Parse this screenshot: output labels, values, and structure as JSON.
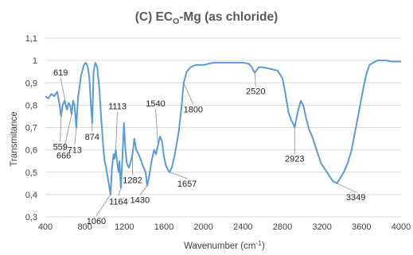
{
  "chart_data": {
    "type": "line",
    "title_main": "(C) EC",
    "title_sub": "O",
    "title_rest": "-Mg (as chloride)",
    "xlabel_main": "Wavenumber (cm",
    "xlabel_sup": "-1",
    "xlabel_end": ")",
    "ylabel": "Transmitance",
    "xlim": [
      400,
      4000
    ],
    "ylim": [
      0.3,
      1.1
    ],
    "xticks": [
      "400",
      "800",
      "1200",
      "1600",
      "2000",
      "2400",
      "2800",
      "3200",
      "3600",
      "4000"
    ],
    "yticks": [
      "0,3",
      "0,4",
      "0,5",
      "0,6",
      "0,7",
      "0,8",
      "0,9",
      "1",
      "1,1"
    ],
    "grid": "horizontal",
    "line_color": "#5B9BD5",
    "series": [
      {
        "x": [
          400,
          430,
          460,
          490,
          520,
          545,
          559,
          575,
          595,
          619,
          635,
          650,
          666,
          680,
          695,
          713,
          730,
          760,
          790,
          810,
          830,
          845,
          860,
          874,
          888,
          905,
          925,
          945,
          965,
          985,
          1000,
          1015,
          1030,
          1045,
          1060,
          1075,
          1090,
          1100,
          1113,
          1125,
          1140,
          1150,
          1164,
          1180,
          1195,
          1210,
          1225,
          1245,
          1265,
          1282,
          1300,
          1320,
          1345,
          1370,
          1395,
          1415,
          1430,
          1450,
          1475,
          1500,
          1520,
          1540,
          1560,
          1580,
          1600,
          1620,
          1640,
          1657,
          1680,
          1710,
          1750,
          1780,
          1800,
          1830,
          1870,
          1920,
          2000,
          2100,
          2200,
          2300,
          2400,
          2460,
          2490,
          2505,
          2520,
          2535,
          2560,
          2600,
          2650,
          2700,
          2750,
          2800,
          2830,
          2860,
          2890,
          2905,
          2923,
          2940,
          2960,
          2985,
          3010,
          3040,
          3070,
          3100,
          3130,
          3160,
          3190,
          3220,
          3250,
          3280,
          3310,
          3349,
          3380,
          3420,
          3460,
          3500,
          3530,
          3560,
          3590,
          3620,
          3650,
          3680,
          3720,
          3760,
          3800,
          3850,
          3900,
          3950,
          4000
        ],
        "y": [
          0.84,
          0.83,
          0.85,
          0.84,
          0.86,
          0.8,
          0.75,
          0.8,
          0.82,
          0.78,
          0.81,
          0.8,
          0.76,
          0.82,
          0.8,
          0.7,
          0.83,
          0.93,
          0.98,
          0.99,
          0.97,
          0.92,
          0.81,
          0.72,
          0.95,
          0.99,
          0.97,
          0.88,
          0.74,
          0.62,
          0.55,
          0.52,
          0.48,
          0.44,
          0.4,
          0.52,
          0.58,
          0.56,
          0.6,
          0.55,
          0.5,
          0.55,
          0.43,
          0.57,
          0.72,
          0.6,
          0.54,
          0.52,
          0.55,
          0.58,
          0.65,
          0.6,
          0.58,
          0.55,
          0.52,
          0.5,
          0.44,
          0.48,
          0.55,
          0.6,
          0.58,
          0.62,
          0.66,
          0.64,
          0.57,
          0.53,
          0.51,
          0.5,
          0.52,
          0.58,
          0.68,
          0.8,
          0.9,
          0.95,
          0.97,
          0.98,
          0.98,
          0.99,
          0.99,
          0.99,
          0.99,
          0.985,
          0.97,
          0.955,
          0.945,
          0.955,
          0.97,
          0.97,
          0.965,
          0.96,
          0.955,
          0.92,
          0.85,
          0.77,
          0.73,
          0.72,
          0.7,
          0.74,
          0.78,
          0.82,
          0.8,
          0.74,
          0.69,
          0.66,
          0.62,
          0.58,
          0.54,
          0.52,
          0.5,
          0.48,
          0.46,
          0.45,
          0.47,
          0.5,
          0.54,
          0.6,
          0.67,
          0.74,
          0.81,
          0.88,
          0.94,
          0.98,
          0.99,
          1.0,
          1.0,
          1.0,
          0.995,
          0.995,
          0.995
        ]
      }
    ],
    "annotations": [
      {
        "text": "619",
        "x": 619,
        "y": 0.78
      },
      {
        "text": "559",
        "x": 559,
        "y": 0.75
      },
      {
        "text": "666",
        "x": 666,
        "y": 0.76
      },
      {
        "text": "713",
        "x": 713,
        "y": 0.7
      },
      {
        "text": "874",
        "x": 874,
        "y": 0.72
      },
      {
        "text": "1113",
        "x": 1113,
        "y": 0.6
      },
      {
        "text": "1060",
        "x": 1060,
        "y": 0.4
      },
      {
        "text": "1164",
        "x": 1164,
        "y": 0.43
      },
      {
        "text": "1282",
        "x": 1282,
        "y": 0.58
      },
      {
        "text": "1430",
        "x": 1430,
        "y": 0.44
      },
      {
        "text": "1540",
        "x": 1540,
        "y": 0.62
      },
      {
        "text": "1657",
        "x": 1657,
        "y": 0.5
      },
      {
        "text": "1800",
        "x": 1800,
        "y": 0.9
      },
      {
        "text": "2520",
        "x": 2520,
        "y": 0.945
      },
      {
        "text": "2923",
        "x": 2923,
        "y": 0.7
      },
      {
        "text": "3349",
        "x": 3349,
        "y": 0.45
      }
    ]
  }
}
